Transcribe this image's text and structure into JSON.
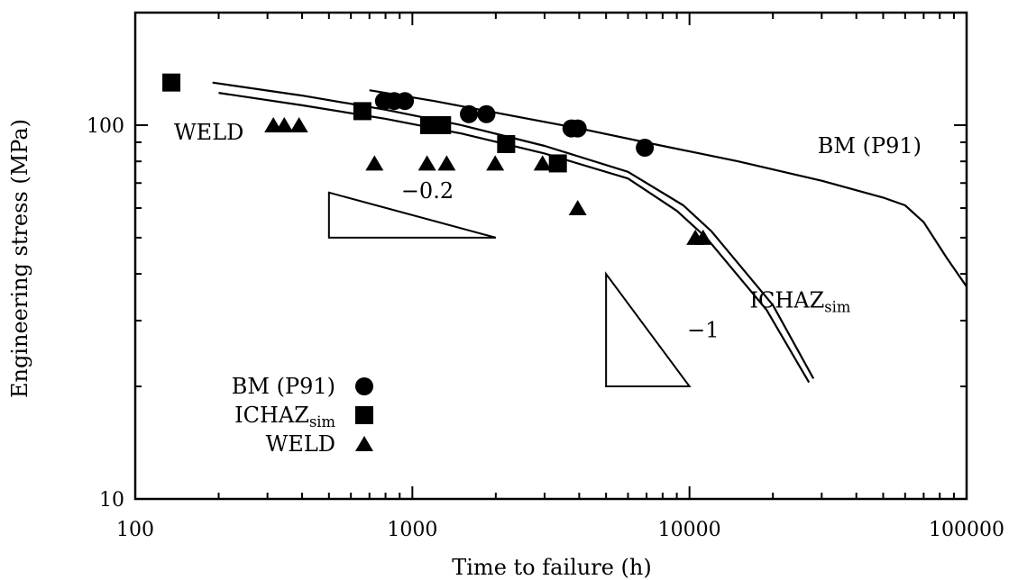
{
  "chart_data": {
    "type": "scatter",
    "x_scale": "log",
    "y_scale": "log",
    "xlim": [
      100,
      100000
    ],
    "ylim": [
      10,
      200
    ],
    "xlabel": "Time to failure (h)",
    "ylabel": "Engineering stress (MPa)",
    "x_ticks": [
      100,
      1000,
      10000,
      100000
    ],
    "x_tick_labels": [
      "100",
      "1000",
      "10000",
      "100000"
    ],
    "y_ticks": [
      10,
      100
    ],
    "y_tick_labels": [
      "10",
      "100"
    ],
    "grid": false,
    "legend_position": "bottom-left",
    "series": [
      {
        "name": "BM (P91)",
        "marker": "circle",
        "points": [
          [
            790,
            116
          ],
          [
            860,
            116
          ],
          [
            940,
            116
          ],
          [
            1600,
            107
          ],
          [
            1850,
            107
          ],
          [
            3750,
            98
          ],
          [
            3950,
            98
          ],
          [
            6900,
            87
          ]
        ]
      },
      {
        "name": "ICHAZsim",
        "marker": "square",
        "points": [
          [
            135,
            130
          ],
          [
            660,
            109
          ],
          [
            1150,
            100
          ],
          [
            1280,
            100
          ],
          [
            2180,
            89
          ],
          [
            3350,
            79
          ]
        ]
      },
      {
        "name": "WELD",
        "marker": "triangle",
        "points": [
          [
            315,
            100
          ],
          [
            345,
            100
          ],
          [
            390,
            100
          ],
          [
            730,
            79
          ],
          [
            1130,
            79
          ],
          [
            1330,
            79
          ],
          [
            1990,
            79
          ],
          [
            2950,
            79
          ],
          [
            3950,
            60
          ],
          [
            10500,
            50
          ],
          [
            11200,
            50
          ]
        ]
      }
    ],
    "curves": [
      {
        "label": "BM (P91)",
        "points": [
          [
            700,
            124
          ],
          [
            1200,
            116
          ],
          [
            2000,
            108
          ],
          [
            4000,
            98
          ],
          [
            8000,
            88
          ],
          [
            15000,
            80
          ],
          [
            30000,
            71
          ],
          [
            50000,
            64
          ],
          [
            60000,
            61
          ],
          [
            70000,
            55
          ],
          [
            85000,
            44
          ],
          [
            100000,
            37
          ]
        ]
      },
      {
        "label": "ICHAZsim",
        "points": [
          [
            190,
            130
          ],
          [
            400,
            120
          ],
          [
            800,
            110
          ],
          [
            1500,
            100
          ],
          [
            3000,
            88
          ],
          [
            6000,
            75
          ],
          [
            9500,
            61
          ],
          [
            12000,
            52
          ],
          [
            20000,
            33
          ],
          [
            28000,
            21
          ]
        ]
      },
      {
        "label": "",
        "points": [
          [
            200,
            122
          ],
          [
            400,
            113
          ],
          [
            800,
            104
          ],
          [
            1500,
            95
          ],
          [
            3000,
            84
          ],
          [
            6000,
            72
          ],
          [
            9000,
            59
          ],
          [
            11500,
            50
          ],
          [
            19000,
            32
          ],
          [
            27000,
            20.5
          ]
        ]
      }
    ],
    "slope_triangles": [
      {
        "label": "−0.2",
        "x0": 500,
        "x1": 2000,
        "y_low": 50,
        "y_high": 66
      },
      {
        "label": "−1",
        "x0": 5000,
        "x1": 10000,
        "y_low": 20,
        "y_high": 40
      }
    ],
    "annotations": [
      {
        "text": "WELD",
        "x": 320,
        "y": 100
      },
      {
        "text": "BM (P91)",
        "x": 29000,
        "y": 88
      },
      {
        "text": "ICHAZ",
        "sub": "sim",
        "x": 16500,
        "y": 34
      }
    ],
    "legend": [
      {
        "name": "BM (P91)",
        "label": "BM (P91)",
        "sub": "",
        "marker": "circle"
      },
      {
        "name": "ICHAZsim",
        "label": "ICHAZ",
        "sub": "sim",
        "marker": "square"
      },
      {
        "name": "WELD",
        "label": "WELD",
        "sub": "",
        "marker": "triangle"
      }
    ]
  }
}
